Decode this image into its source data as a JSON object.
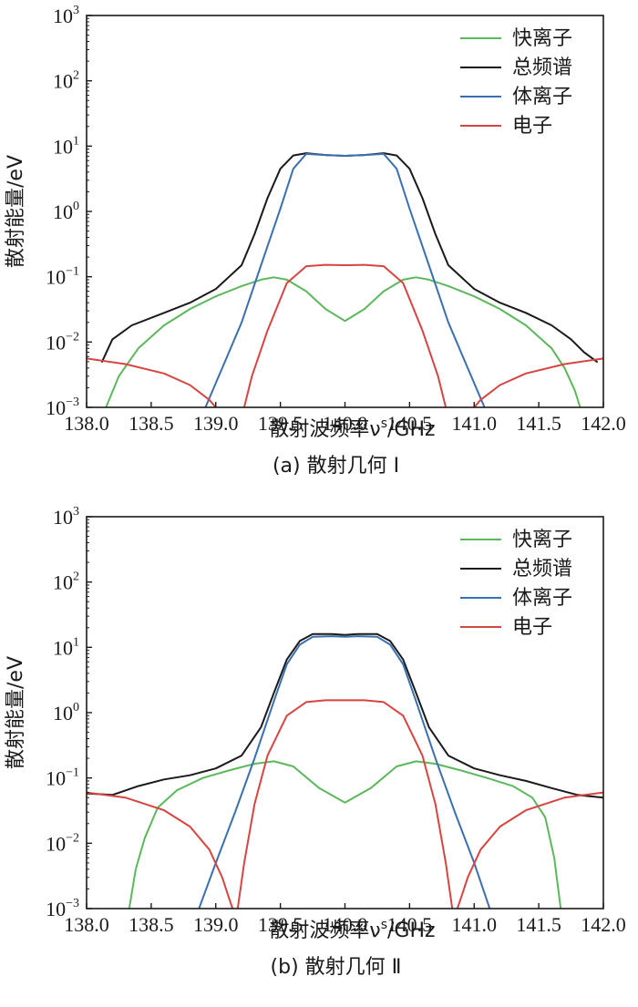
{
  "chart_data": [
    {
      "type": "line",
      "caption": "(a) 散射几何 Ⅰ",
      "xlabel": "散射波频率ν",
      "xlabel_sup": "s",
      "xlabel_unit": "/GHz",
      "ylabel": "散射能量/eV",
      "xlim": [
        138.0,
        142.0
      ],
      "ylim": [
        0.001,
        1000
      ],
      "yscale": "log",
      "x_ticks": [
        "138.0",
        "138.5",
        "139.0",
        "139.5",
        "140.0",
        "140.5",
        "141.0",
        "141.5",
        "142.0"
      ],
      "y_ticks": [
        {
          "base": "10",
          "exp": "3"
        },
        {
          "base": "10",
          "exp": "2"
        },
        {
          "base": "10",
          "exp": "1"
        },
        {
          "base": "10",
          "exp": "0"
        },
        {
          "base": "10",
          "exp": "−1"
        },
        {
          "base": "10",
          "exp": "−2"
        },
        {
          "base": "10",
          "exp": "−3"
        }
      ],
      "legend_position": "top-right",
      "series": [
        {
          "name": "快离子",
          "color": "#5cb85c",
          "x": [
            138.15,
            138.25,
            138.4,
            138.6,
            138.8,
            139.0,
            139.2,
            139.35,
            139.45,
            139.55,
            139.7,
            139.85,
            140.0,
            140.15,
            140.3,
            140.45,
            140.55,
            140.65,
            140.8,
            141.0,
            141.2,
            141.4,
            141.6,
            141.7,
            141.78,
            141.82
          ],
          "y": [
            0.001,
            0.003,
            0.008,
            0.018,
            0.032,
            0.05,
            0.072,
            0.09,
            0.098,
            0.09,
            0.06,
            0.032,
            0.021,
            0.032,
            0.06,
            0.09,
            0.098,
            0.09,
            0.072,
            0.05,
            0.032,
            0.018,
            0.008,
            0.004,
            0.0018,
            0.001
          ]
        },
        {
          "name": "总频谱",
          "color": "#1a1a1a",
          "x": [
            138.12,
            138.2,
            138.35,
            138.6,
            138.8,
            139.0,
            139.2,
            139.3,
            139.4,
            139.5,
            139.6,
            139.7,
            139.85,
            140.0,
            140.15,
            140.3,
            140.4,
            140.5,
            140.6,
            140.7,
            140.8,
            141.0,
            141.2,
            141.4,
            141.6,
            141.75,
            141.85,
            141.95
          ],
          "y": [
            0.005,
            0.011,
            0.018,
            0.028,
            0.04,
            0.065,
            0.15,
            0.45,
            1.6,
            4.5,
            7.2,
            7.8,
            7.3,
            7.1,
            7.3,
            7.8,
            7.2,
            4.5,
            1.6,
            0.45,
            0.15,
            0.065,
            0.04,
            0.028,
            0.018,
            0.011,
            0.007,
            0.005
          ]
        },
        {
          "name": "体离子",
          "color": "#3a6fb0",
          "x": [
            138.92,
            139.05,
            139.2,
            139.35,
            139.5,
            139.6,
            139.7,
            139.85,
            140.0,
            140.15,
            140.3,
            140.4,
            140.5,
            140.65,
            140.8,
            140.95,
            141.08
          ],
          "y": [
            0.001,
            0.004,
            0.02,
            0.15,
            1.1,
            4.5,
            7.6,
            7.3,
            7.1,
            7.3,
            7.6,
            4.5,
            1.1,
            0.15,
            0.02,
            0.004,
            0.001
          ]
        },
        {
          "name": "电子",
          "color": "#d64541",
          "x": [
            138.0,
            138.3,
            138.6,
            138.8,
            138.95,
            139.02,
            139.05,
            null,
            139.22,
            139.28,
            139.4,
            139.55,
            139.7,
            139.85,
            140.0,
            140.15,
            140.3,
            140.45,
            140.6,
            140.72,
            140.78,
            null,
            140.95,
            140.98,
            141.05,
            141.2,
            141.4,
            141.7,
            142.0
          ],
          "y": [
            0.0056,
            0.0046,
            0.0033,
            0.0022,
            0.0013,
            0.0009,
            0.0006,
            null,
            0.001,
            0.003,
            0.015,
            0.08,
            0.145,
            0.152,
            0.15,
            0.152,
            0.145,
            0.08,
            0.015,
            0.003,
            0.001,
            null,
            0.0006,
            0.0009,
            0.0013,
            0.0022,
            0.0033,
            0.0046,
            0.0056
          ]
        }
      ]
    },
    {
      "type": "line",
      "caption": "(b) 散射几何 Ⅱ",
      "xlabel": "散射波频率ν",
      "xlabel_sup": "s",
      "xlabel_unit": "/GHz",
      "ylabel": "散射能量/eV",
      "xlim": [
        138.0,
        142.0
      ],
      "ylim": [
        0.001,
        1000
      ],
      "yscale": "log",
      "x_ticks": [
        "138.0",
        "138.5",
        "139.0",
        "139.5",
        "140.0",
        "140.5",
        "141.0",
        "141.5",
        "142.0"
      ],
      "y_ticks": [
        {
          "base": "10",
          "exp": "3"
        },
        {
          "base": "10",
          "exp": "2"
        },
        {
          "base": "10",
          "exp": "1"
        },
        {
          "base": "10",
          "exp": "0"
        },
        {
          "base": "10",
          "exp": "−1"
        },
        {
          "base": "10",
          "exp": "−2"
        },
        {
          "base": "10",
          "exp": "−3"
        }
      ],
      "legend_position": "top-right",
      "series": [
        {
          "name": "快离子",
          "color": "#5cb85c",
          "x": [
            138.33,
            138.38,
            138.45,
            138.55,
            138.7,
            138.9,
            139.1,
            139.3,
            139.45,
            139.6,
            139.8,
            140.0,
            140.2,
            140.4,
            140.55,
            140.7,
            140.9,
            141.1,
            141.3,
            141.45,
            141.55,
            141.62,
            141.67
          ],
          "y": [
            0.001,
            0.004,
            0.012,
            0.035,
            0.065,
            0.1,
            0.13,
            0.165,
            0.18,
            0.15,
            0.07,
            0.042,
            0.07,
            0.15,
            0.18,
            0.165,
            0.13,
            0.1,
            0.075,
            0.05,
            0.025,
            0.006,
            0.001
          ]
        },
        {
          "name": "总频谱",
          "color": "#1a1a1a",
          "x": [
            138.0,
            138.2,
            138.4,
            138.6,
            138.8,
            139.0,
            139.2,
            139.35,
            139.45,
            139.55,
            139.65,
            139.75,
            139.9,
            140.0,
            140.1,
            140.25,
            140.35,
            140.45,
            140.55,
            140.65,
            140.8,
            141.0,
            141.2,
            141.4,
            141.6,
            141.8,
            142.0
          ],
          "y": [
            0.058,
            0.055,
            0.075,
            0.095,
            0.11,
            0.14,
            0.22,
            0.6,
            2.0,
            6.5,
            12.5,
            16.0,
            16.0,
            15.5,
            16.0,
            16.0,
            12.5,
            6.5,
            2.0,
            0.6,
            0.22,
            0.14,
            0.11,
            0.09,
            0.07,
            0.055,
            0.05
          ]
        },
        {
          "name": "体离子",
          "color": "#3a6fb0",
          "x": [
            138.87,
            139.0,
            139.15,
            139.3,
            139.45,
            139.55,
            139.65,
            139.75,
            139.9,
            140.0,
            140.1,
            140.25,
            140.35,
            140.45,
            140.55,
            140.7,
            140.85,
            141.0,
            141.12
          ],
          "y": [
            0.001,
            0.005,
            0.03,
            0.2,
            1.5,
            5.5,
            11.0,
            14.5,
            14.8,
            14.5,
            14.8,
            14.5,
            11.0,
            5.5,
            1.5,
            0.2,
            0.03,
            0.005,
            0.001
          ]
        },
        {
          "name": "电子",
          "color": "#d64541",
          "x": [
            138.0,
            138.3,
            138.6,
            138.8,
            138.95,
            139.05,
            139.1,
            139.13,
            null,
            139.17,
            139.22,
            139.3,
            139.4,
            139.55,
            139.7,
            139.85,
            140.0,
            140.15,
            140.3,
            140.45,
            140.6,
            140.7,
            140.78,
            140.83,
            null,
            140.87,
            140.9,
            140.95,
            141.05,
            141.2,
            141.4,
            141.7,
            142.0
          ],
          "y": [
            0.06,
            0.05,
            0.032,
            0.018,
            0.008,
            0.003,
            0.0015,
            0.001,
            null,
            0.001,
            0.005,
            0.04,
            0.22,
            0.9,
            1.45,
            1.55,
            1.55,
            1.55,
            1.45,
            0.9,
            0.22,
            0.04,
            0.005,
            0.001,
            null,
            0.001,
            0.0015,
            0.003,
            0.008,
            0.018,
            0.032,
            0.05,
            0.06
          ]
        }
      ]
    }
  ]
}
